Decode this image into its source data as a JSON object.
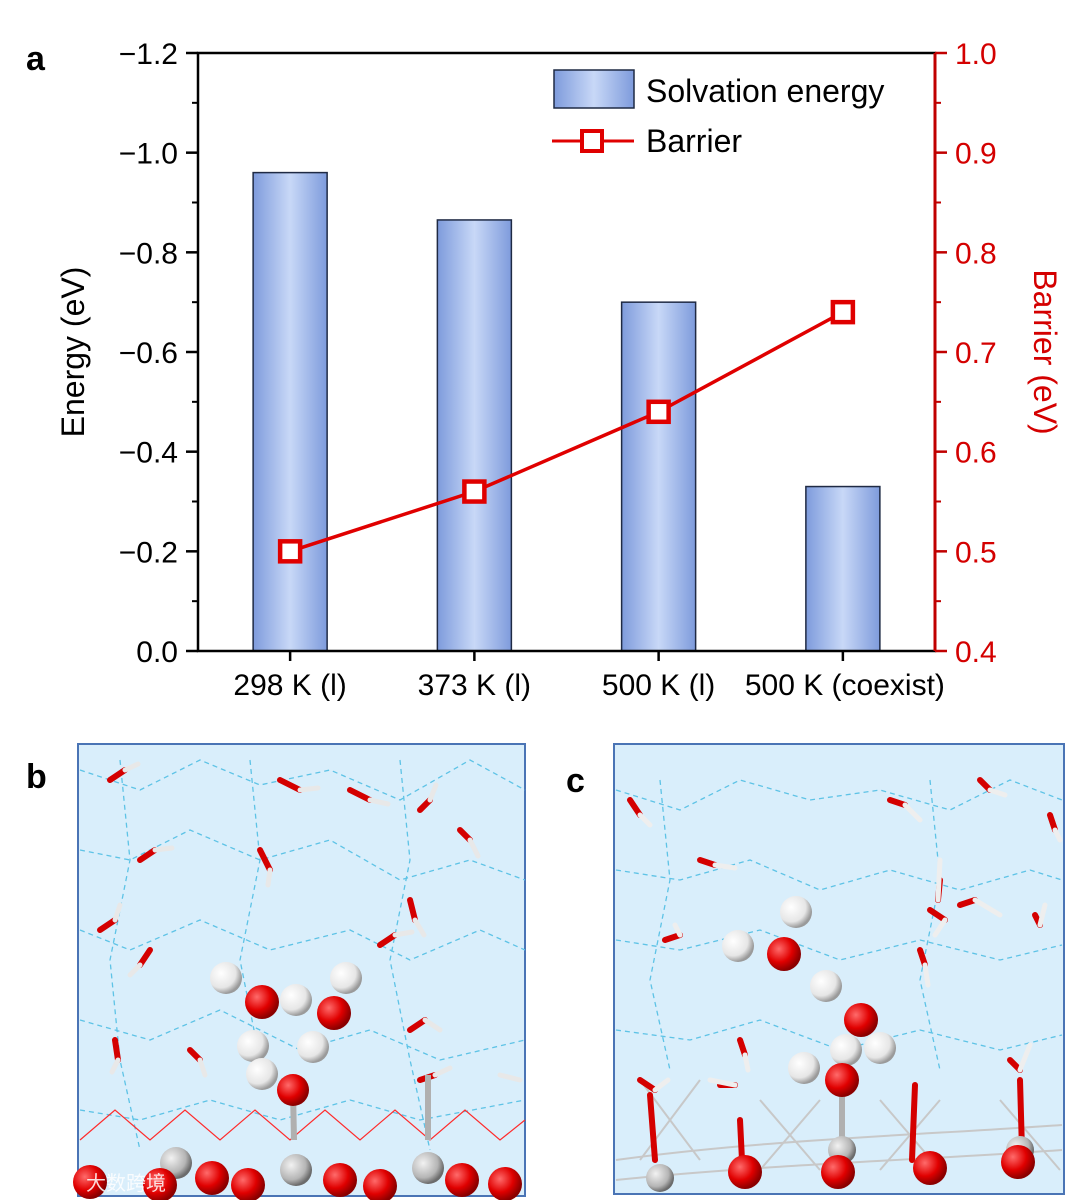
{
  "panels": {
    "a": "a",
    "b": "b",
    "c": "c"
  },
  "watermark": "大数跨境",
  "colors": {
    "bar_fill_dark": "#7e9bdc",
    "bar_fill_light": "#c8d8f7",
    "bar_stroke": "#1f2a44",
    "barrier": "#e00000",
    "axis_right": "#c00000",
    "sim_bg": "#d9eefb",
    "sim_border": "#4a74b5"
  },
  "chart_data": {
    "type": "bar",
    "categories": [
      "298 K (l)",
      "373 K (l)",
      "500 K (l)",
      "500 K (coexist)"
    ],
    "series": [
      {
        "name": "Solvation energy",
        "axis": "left",
        "kind": "bar",
        "values": [
          -0.96,
          -0.865,
          -0.7,
          -0.33
        ]
      },
      {
        "name": "Barrier",
        "axis": "right",
        "kind": "line",
        "values": [
          0.5,
          0.56,
          0.64,
          0.74
        ]
      }
    ],
    "ylabel": "Energy (eV)",
    "ylabel_right": "Barrier (eV)",
    "ylim": [
      0.0,
      -1.2
    ],
    "ylim_right": [
      0.4,
      1.0
    ],
    "yticks": [
      "0.0",
      "−0.2",
      "−0.4",
      "−0.6",
      "−0.8",
      "−1.0",
      "−1.2"
    ],
    "yticks_right": [
      "0.4",
      "0.5",
      "0.6",
      "0.7",
      "0.8",
      "0.9",
      "1.0"
    ],
    "legend": [
      "Solvation energy",
      "Barrier"
    ],
    "legend_position": "top-right",
    "grid": false
  }
}
